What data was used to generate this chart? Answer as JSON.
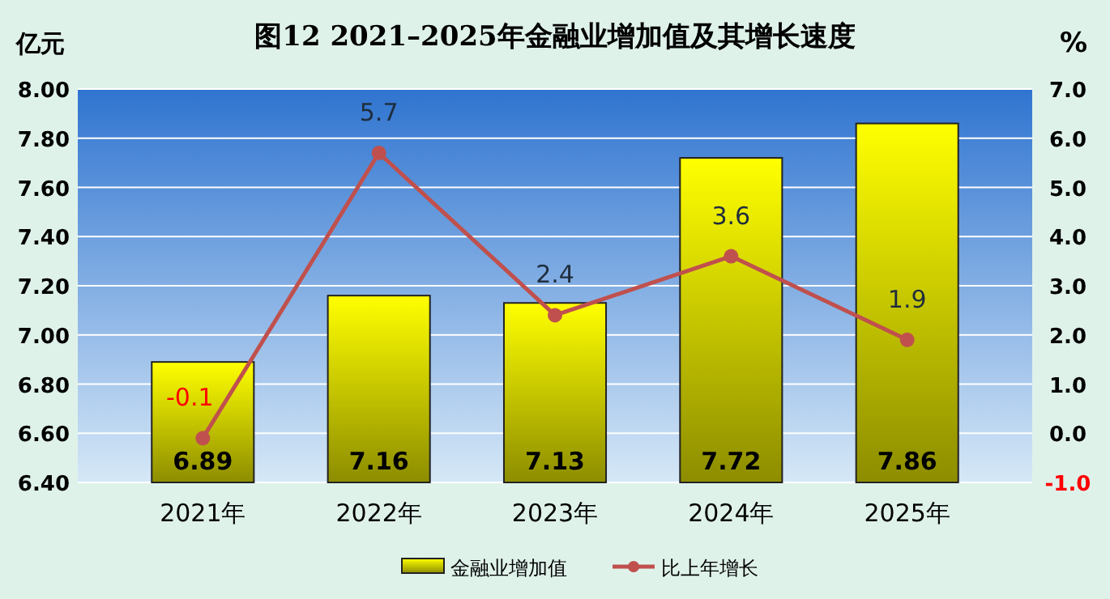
{
  "chart_data": {
    "type": "bar",
    "title": "图12  2021–2025年金融业增加值及其增长速度",
    "ylabel": "亿元",
    "y2label": "%",
    "categories": [
      "2021年",
      "2022年",
      "2023年",
      "2024年",
      "2025年"
    ],
    "series": [
      {
        "name": "金融业增加值",
        "color": "#ffff00",
        "values": [
          6.89,
          7.16,
          7.13,
          7.72,
          7.86
        ]
      },
      {
        "name": "比上年增长",
        "type": "line",
        "axis": "y2",
        "color": "#c0504d",
        "marker": "circle",
        "values": [
          -0.1,
          5.7,
          2.4,
          3.6,
          1.9
        ]
      }
    ],
    "ylim": [
      6.4,
      8.0
    ],
    "yticks": [
      {
        "value": 6.4,
        "label": "6.40"
      },
      {
        "value": 6.6,
        "label": "6.60"
      },
      {
        "value": 6.8,
        "label": "6.80"
      },
      {
        "value": 7.0,
        "label": "7.00"
      },
      {
        "value": 7.2,
        "label": "7.20"
      },
      {
        "value": 7.4,
        "label": "7.40"
      },
      {
        "value": 7.6,
        "label": "7.60"
      },
      {
        "value": 7.8,
        "label": "7.80"
      },
      {
        "value": 8.0,
        "label": "8.00"
      }
    ],
    "y2lim": [
      -1.0,
      7.0
    ],
    "y2ticks": [
      {
        "value": -1,
        "label": "-1.0"
      },
      {
        "value": 0,
        "label": "0.0"
      },
      {
        "value": 1,
        "label": "1.0"
      },
      {
        "value": 2,
        "label": "2.0"
      },
      {
        "value": 3,
        "label": "3.0"
      },
      {
        "value": 4,
        "label": "4.0"
      },
      {
        "value": 5,
        "label": "5.0"
      },
      {
        "value": 6,
        "label": "6.0"
      },
      {
        "value": 7,
        "label": "7.0"
      }
    ],
    "grid": "y",
    "legend": "bottom",
    "data_labels": true
  }
}
